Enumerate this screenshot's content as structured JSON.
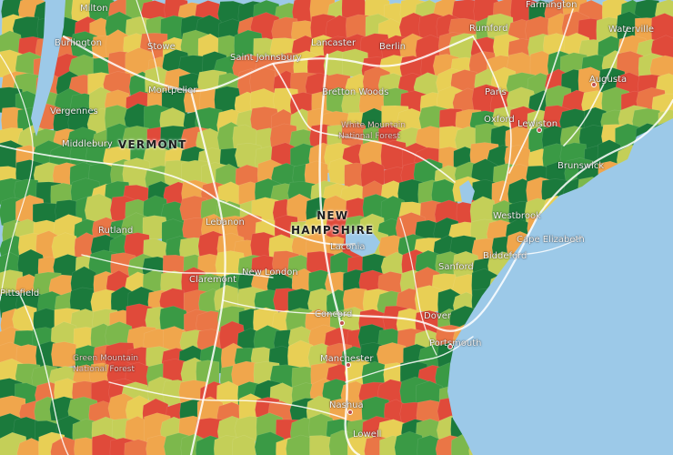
{
  "map": {
    "colors": {
      "water": "#9cc9e8",
      "roads": "#ffffff",
      "palette": [
        "#1b7a3c",
        "#3a9a45",
        "#7cb84c",
        "#c4cf58",
        "#e8cf55",
        "#f0a64c",
        "#ea7646",
        "#e04a3a"
      ]
    },
    "states": {
      "vermont": "VERMONT",
      "nh_line1": "NEW",
      "nh_line2": "HAMPSHIRE"
    },
    "places": {
      "milton": "Milton",
      "burlington": "Burlington",
      "stowe": "Stowe",
      "st_johnsbury": "Saint Johnsbury",
      "montpelier": "Montpelier",
      "vergennes": "Vergennes",
      "middlebury": "Middlebury",
      "lancaster": "Lancaster",
      "berlin": "Berlin",
      "bretton_woods": "Bretton Woods",
      "wmnf_1": "White Mountain",
      "wmnf_2": "National Forest",
      "rumford": "Rumford",
      "farmington": "Farmington",
      "waterville": "Waterville",
      "augusta": "Augusta",
      "paris": "Paris",
      "oxford": "Oxford",
      "lewiston": "Lewiston",
      "brunswick": "Brunswick",
      "westbrook": "Westbrook",
      "cape_elizabeth": "Cape Elizabeth",
      "sanford": "Sanford",
      "biddeford": "Biddeford",
      "lebanon": "Lebanon",
      "rutland": "Rutland",
      "claremont": "Claremont",
      "new_london": "New London",
      "laconia": "Laconia",
      "concord": "Concord",
      "dover": "Dover",
      "portsmouth": "Portsmouth",
      "manchester": "Manchester",
      "nashua": "Nashua",
      "lowell": "Lowell",
      "gmnf_1": "Green Mountain",
      "gmnf_2": "National Forest",
      "pittsfield": "Pittsfield"
    }
  }
}
